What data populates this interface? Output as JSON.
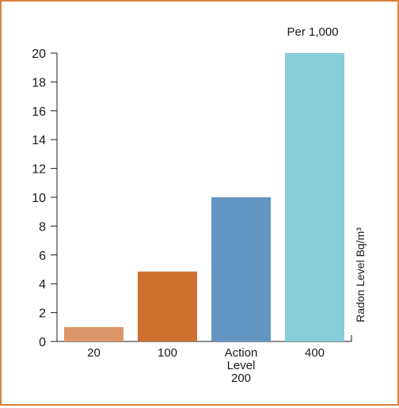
{
  "chart_data": {
    "type": "bar",
    "annotation": "Per 1,000",
    "ylabel": "Radon Level Bq/m³",
    "xlabel": "",
    "ylim": [
      0,
      20
    ],
    "yticks": [
      0,
      2,
      4,
      6,
      8,
      10,
      12,
      14,
      16,
      18,
      20
    ],
    "categories": [
      {
        "lines": [
          "20"
        ]
      },
      {
        "lines": [
          "100"
        ]
      },
      {
        "lines": [
          "Action",
          "Level",
          "200"
        ]
      },
      {
        "lines": [
          "400"
        ]
      }
    ],
    "values": [
      1,
      4.85,
      10,
      20
    ],
    "bar_colors": [
      "#dd9669",
      "#cf6f2e",
      "#6396c3",
      "#87ccd9"
    ],
    "frame_color": "#d9833f",
    "grid": false,
    "legend": "none"
  }
}
